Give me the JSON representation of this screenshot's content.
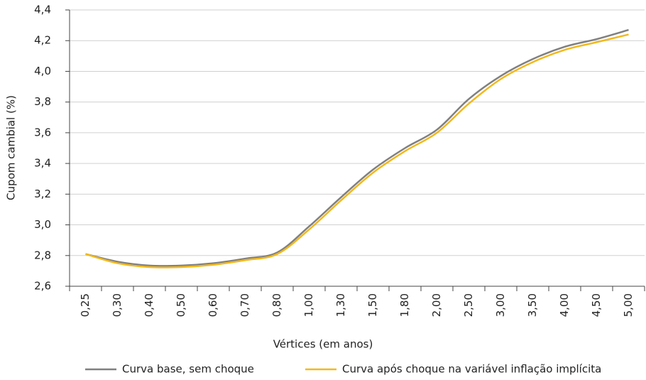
{
  "chart_data": {
    "type": "line",
    "y_label": "Cupom cambial (%)",
    "x_label": "Vértices (em anos)",
    "categories": [
      "0,25",
      "0,30",
      "0,40",
      "0,50",
      "0,60",
      "0,70",
      "0,80",
      "1,00",
      "1,30",
      "1,50",
      "1,80",
      "2,00",
      "2,50",
      "3,00",
      "3,50",
      "4,00",
      "4,50",
      "5,00"
    ],
    "series": [
      {
        "name": "Curva base, sem choque",
        "color": "#808080",
        "values": [
          2.81,
          2.76,
          2.735,
          2.735,
          2.75,
          2.78,
          2.82,
          2.99,
          3.18,
          3.36,
          3.5,
          3.62,
          3.82,
          3.97,
          4.08,
          4.16,
          4.21,
          4.27
        ]
      },
      {
        "name": "Curva após choque na variável inflação implícita",
        "color": "#f2b91d",
        "values": [
          2.81,
          2.75,
          2.725,
          2.725,
          2.74,
          2.77,
          2.81,
          2.97,
          3.16,
          3.34,
          3.48,
          3.6,
          3.79,
          3.95,
          4.06,
          4.14,
          4.19,
          4.24
        ]
      }
    ],
    "ylim": [
      2.6,
      4.4
    ],
    "yticks": [
      {
        "value": 2.6,
        "label": "2,6"
      },
      {
        "value": 2.8,
        "label": "2,8"
      },
      {
        "value": 3.0,
        "label": "3,0"
      },
      {
        "value": 3.2,
        "label": "3,2"
      },
      {
        "value": 3.4,
        "label": "3,4"
      },
      {
        "value": 3.6,
        "label": "3,6"
      },
      {
        "value": 3.8,
        "label": "3,8"
      },
      {
        "value": 4.0,
        "label": "4,0"
      },
      {
        "value": 4.2,
        "label": "4,2"
      },
      {
        "value": 4.4,
        "label": "4,4"
      }
    ],
    "grid": true
  }
}
